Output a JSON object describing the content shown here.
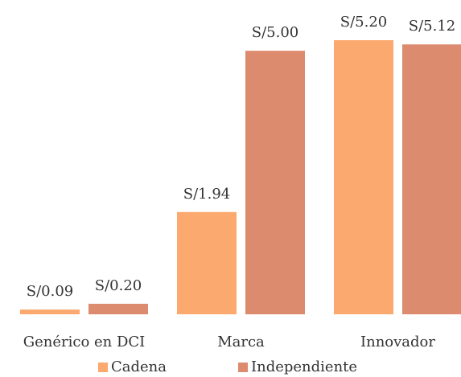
{
  "chart_data": {
    "type": "bar",
    "categories": [
      "Genérico en DCI",
      "Marca",
      "Innovador"
    ],
    "series": [
      {
        "name": "Cadena",
        "color": "#fba96e",
        "values": [
          0.09,
          1.94,
          5.2
        ],
        "value_labels": [
          "S/0.09",
          "S/1.94",
          "S/5.20"
        ]
      },
      {
        "name": "Independiente",
        "color": "#dc8b6e",
        "values": [
          0.2,
          5.0,
          5.12
        ],
        "value_labels": [
          "S/0.20",
          "S/5.00",
          "S/5.12"
        ]
      }
    ],
    "legend": "bottom"
  }
}
